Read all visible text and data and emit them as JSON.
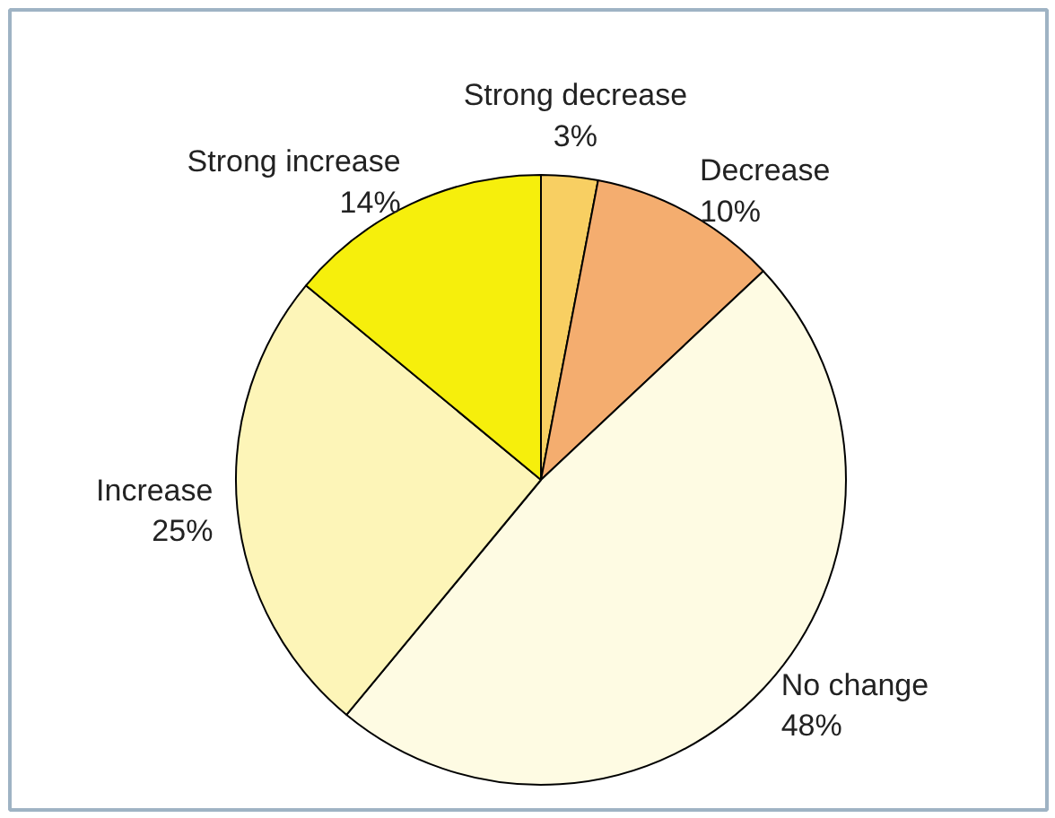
{
  "chart_data": {
    "type": "pie",
    "categories": [
      "Strong decrease",
      "Decrease",
      "No change",
      "Increase",
      "Strong increase"
    ],
    "values": [
      3,
      10,
      48,
      25,
      14
    ],
    "value_labels": [
      "3%",
      "10%",
      "48%",
      "25%",
      "14%"
    ],
    "colors": [
      "#f8cf62",
      "#f4ad6f",
      "#fefbe3",
      "#fdf5b8",
      "#f6ef0c"
    ]
  }
}
